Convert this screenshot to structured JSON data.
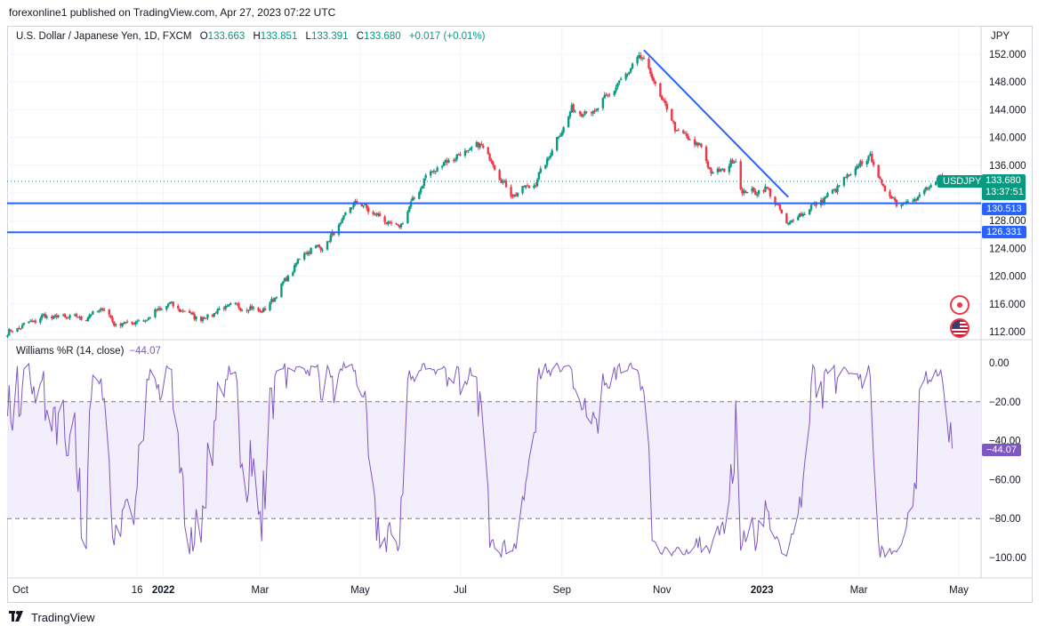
{
  "publisher_line": "forexonline1 published on TradingView.com, Apr 27, 2023 07:22 UTC",
  "legend": {
    "symbol": "U.S. Dollar / Japanese Yen, 1D, FXCM",
    "o_label": "O",
    "o": "133.663",
    "h_label": "H",
    "h": "133.851",
    "l_label": "L",
    "l": "133.391",
    "c_label": "C",
    "c": "133.680",
    "change": "+0.017 (+0.01%)"
  },
  "currency": "JPY",
  "price_tags": {
    "symbol": "USDJPY",
    "last": "133.680",
    "countdown": "13:37:51",
    "level1": "130.513",
    "level2": "126.331"
  },
  "indicator": {
    "name": "Williams %R (14, close)",
    "value": "−44.07",
    "tag": "−44.07"
  },
  "brand": "TradingView",
  "colors": {
    "up": "#089981",
    "down": "#f23645",
    "level": "#2962ff",
    "trendline": "#2962ff",
    "wr_line": "#7e57c2",
    "wr_band": "#f3eefb"
  },
  "icons": [
    "tradingview-logo-icon",
    "target-icon",
    "us-flag-icon"
  ],
  "chart_data": [
    {
      "type": "candlestick",
      "title": "U.S. Dollar / Japanese Yen, 1D, FXCM",
      "ylabel": "JPY",
      "ylim": [
        111,
        154
      ],
      "y_ticks": [
        "152.000",
        "148.000",
        "144.000",
        "140.000",
        "136.000",
        "132.000",
        "128.000",
        "124.000",
        "120.000",
        "116.000",
        "112.000"
      ],
      "y_tick_values": [
        152,
        148,
        144,
        140,
        136,
        132,
        128,
        124,
        120,
        116,
        112
      ],
      "x_ticks": [
        "Oct",
        "16",
        "2022",
        "Mar",
        "May",
        "Jul",
        "Sep",
        "Nov",
        "2023",
        "Mar",
        "May"
      ],
      "x_tick_dates": [
        "2021-10-01",
        "2021-12-16",
        "2022-01-01",
        "2022-03-01",
        "2022-05-01",
        "2022-07-01",
        "2022-09-01",
        "2022-11-01",
        "2023-01-01",
        "2023-03-01",
        "2023-05-01"
      ],
      "close_path": [
        [
          "2021-09-28",
          111.8
        ],
        [
          "2021-10-20",
          114.2
        ],
        [
          "2021-11-15",
          114.0
        ],
        [
          "2021-11-25",
          115.4
        ],
        [
          "2021-12-03",
          113.0
        ],
        [
          "2021-12-20",
          113.6
        ],
        [
          "2022-01-04",
          116.0
        ],
        [
          "2022-01-24",
          113.8
        ],
        [
          "2022-02-10",
          115.8
        ],
        [
          "2022-03-04",
          115.0
        ],
        [
          "2022-03-28",
          123.5
        ],
        [
          "2022-04-10",
          124.5
        ],
        [
          "2022-04-28",
          130.8
        ],
        [
          "2022-05-24",
          126.8
        ],
        [
          "2022-06-10",
          134.3
        ],
        [
          "2022-06-22",
          136.5
        ],
        [
          "2022-07-14",
          139.0
        ],
        [
          "2022-08-01",
          131.6
        ],
        [
          "2022-08-16",
          133.5
        ],
        [
          "2022-09-07",
          144.0
        ],
        [
          "2022-09-20",
          143.5
        ],
        [
          "2022-10-20",
          151.8
        ],
        [
          "2022-10-28",
          147.5
        ],
        [
          "2022-11-10",
          141.0
        ],
        [
          "2022-11-25",
          138.5
        ],
        [
          "2022-12-02",
          134.5
        ],
        [
          "2022-12-16",
          136.7
        ],
        [
          "2022-12-20",
          132.0
        ],
        [
          "2023-01-05",
          132.5
        ],
        [
          "2023-01-16",
          127.5
        ],
        [
          "2023-01-31",
          130.0
        ],
        [
          "2023-02-10",
          131.5
        ],
        [
          "2023-03-08",
          137.5
        ],
        [
          "2023-03-14",
          133.5
        ],
        [
          "2023-03-24",
          130.5
        ],
        [
          "2023-04-05",
          131.2
        ],
        [
          "2023-04-20",
          134.2
        ],
        [
          "2023-04-27",
          133.68
        ]
      ],
      "horizontal_levels": [
        130.513,
        126.331
      ],
      "trendline": [
        [
          "2022-10-21",
          152.6
        ],
        [
          "2023-01-17",
          131.4
        ]
      ]
    },
    {
      "type": "line",
      "title": "Williams %R (14, close)",
      "ylim": [
        -105,
        3
      ],
      "y_ticks": [
        "0.00",
        "−20.00",
        "−40.00",
        "−60.00",
        "−80.00",
        "−100.00"
      ],
      "y_tick_values": [
        0,
        -20,
        -40,
        -60,
        -80,
        -100
      ],
      "band": [
        -80,
        -20
      ],
      "last_value": -44.07
    }
  ]
}
